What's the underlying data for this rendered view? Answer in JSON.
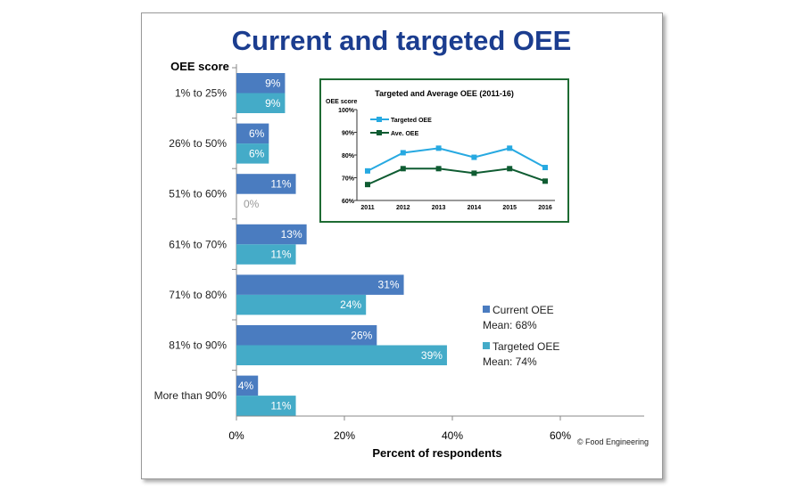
{
  "chart_data": [
    {
      "type": "bar",
      "orientation": "horizontal",
      "title": "Current and targeted OEE",
      "ylabel": "OEE score",
      "xlabel": "Percent of respondents",
      "categories": [
        "1% to 25%",
        "26% to 50%",
        "51% to 60%",
        "61% to 70%",
        "71% to 80%",
        "81% to 90%",
        "More than 90%"
      ],
      "series": [
        {
          "name": "Current OEE",
          "note": "Mean: 68%",
          "color": "#4a7cc0",
          "values": [
            9,
            6,
            11,
            13,
            31,
            26,
            4
          ]
        },
        {
          "name": "Targeted OEE",
          "note": "Mean: 74%",
          "color": "#44abc8",
          "values": [
            9,
            6,
            0,
            11,
            24,
            39,
            11
          ]
        }
      ],
      "xlim": [
        0,
        60
      ],
      "xticks": [
        "0%",
        "20%",
        "40%",
        "60%"
      ],
      "legend": "right",
      "grid": false,
      "credit": "© Food Engineering"
    },
    {
      "type": "line",
      "title": "Targeted and Average OEE (2011-16)",
      "ylabel": "OEE score",
      "x": [
        "2011",
        "2012",
        "2013",
        "2014",
        "2015",
        "2016"
      ],
      "yticks": [
        "60%",
        "70%",
        "80%",
        "90%",
        "100%"
      ],
      "ylim": [
        60,
        100
      ],
      "series": [
        {
          "name": "Targeted OEE",
          "color": "#27a9e1",
          "values": [
            73,
            81,
            83,
            79,
            83,
            74.5
          ]
        },
        {
          "name": "Ave. OEE",
          "color": "#0f5c32",
          "values": [
            67,
            74,
            74,
            72,
            74,
            68.5
          ]
        }
      ],
      "legend": "top-left",
      "border_color": "#1e6b33"
    }
  ]
}
